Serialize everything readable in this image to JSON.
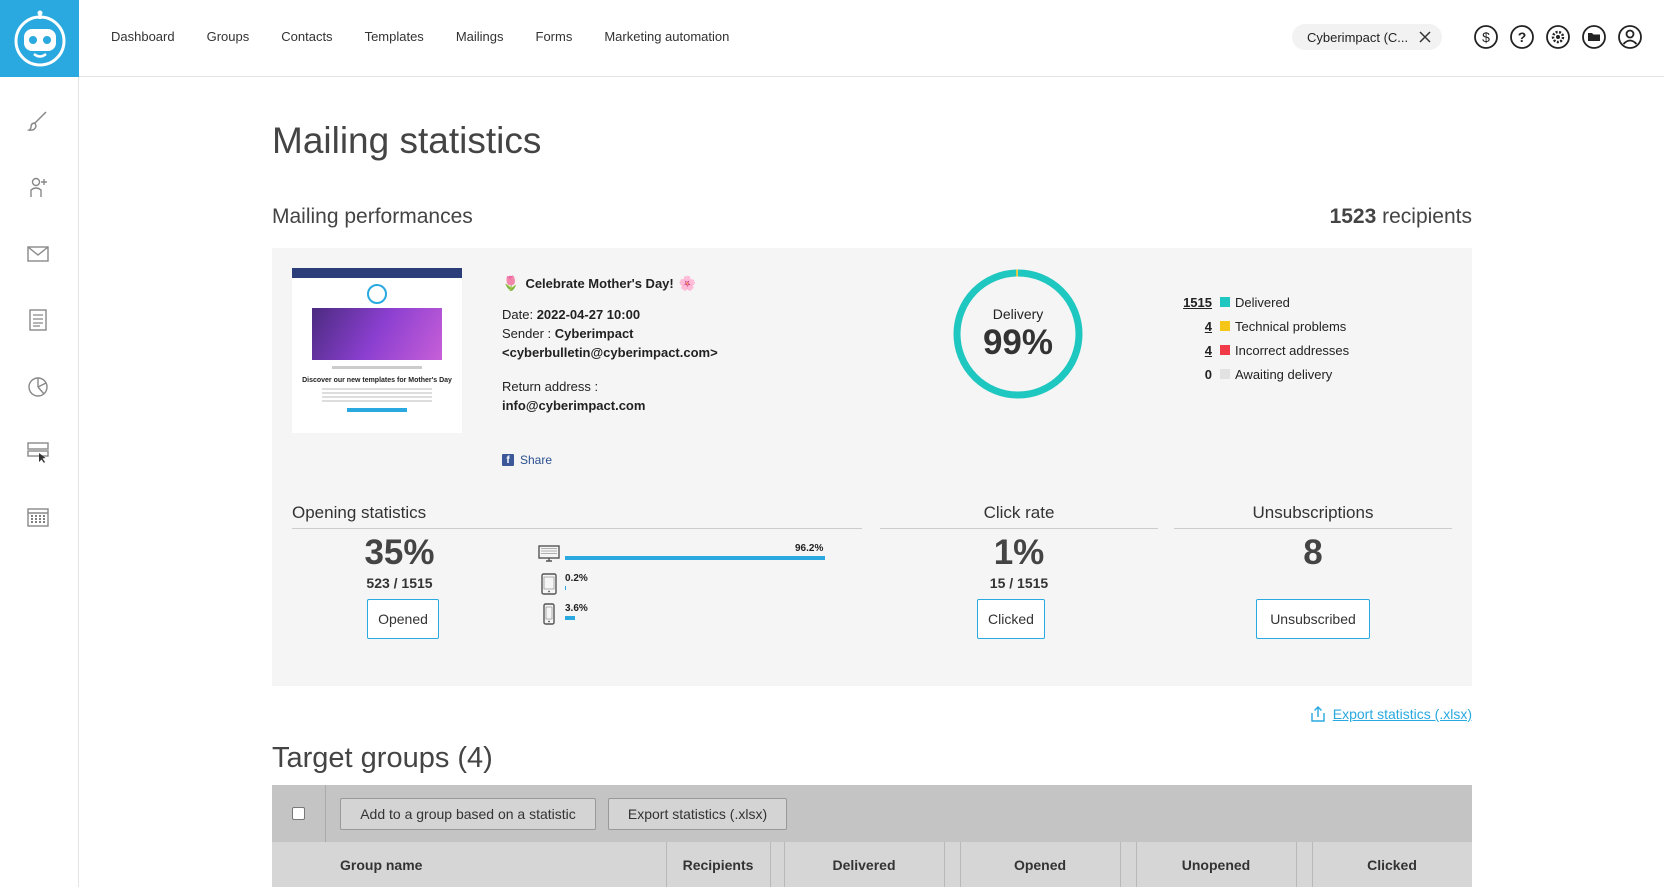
{
  "nav": {
    "items": [
      "Dashboard",
      "Groups",
      "Contacts",
      "Templates",
      "Mailings",
      "Forms",
      "Marketing automation"
    ],
    "account": "Cyberimpact (C...",
    "icons": [
      "dollar-icon",
      "help-icon",
      "settings-icon",
      "folder-icon",
      "user-icon"
    ]
  },
  "sidebar": {
    "icons": [
      "brush-icon",
      "add-contact-icon",
      "mail-icon",
      "document-icon",
      "pie-chart-icon",
      "form-icon",
      "calendar-icon"
    ]
  },
  "page": {
    "title": "Mailing statistics",
    "performance_title": "Mailing performances",
    "recipients_count": "1523",
    "recipients_label": " recipients"
  },
  "mailing": {
    "subject": "Celebrate Mother's Day!",
    "thumbnail_heading": "Discover our new templates for Mother's Day",
    "date_label": "Date: ",
    "date_value": "2022-04-27 10:00",
    "sender_label": "Sender : ",
    "sender_name": "Cyberimpact",
    "sender_email": "<cyberbulletin@cyberimpact.com>",
    "return_label": "Return address :",
    "return_value": "info@cyberimpact.com",
    "share_label": "Share"
  },
  "delivery": {
    "label": "Delivery",
    "value": "99%",
    "delivered_fraction": 0.995,
    "colors": {
      "delivered": "#1ec8c0",
      "technical": "#f5c518",
      "incorrect": "#f03a47",
      "awaiting": "#e2e2e2"
    },
    "legend": [
      {
        "count": "1515",
        "label": "Delivered",
        "underline": true
      },
      {
        "count": "4",
        "label": "Technical problems",
        "underline": true
      },
      {
        "count": "4",
        "label": "Incorrect addresses",
        "underline": true
      },
      {
        "count": "0",
        "label": "Awaiting delivery",
        "underline": false
      }
    ]
  },
  "opening": {
    "title": "Opening statistics",
    "pct": "35%",
    "ratio": "523 / 1515",
    "button": "Opened",
    "devices": [
      {
        "icon": "desktop-icon",
        "value": "96.2%",
        "fraction": 0.962
      },
      {
        "icon": "tablet-icon",
        "value": "0.2%",
        "fraction": 0.002
      },
      {
        "icon": "mobile-icon",
        "value": "3.6%",
        "fraction": 0.036
      }
    ]
  },
  "click": {
    "title": "Click rate",
    "pct": "1%",
    "ratio": "15 / 1515",
    "button": "Clicked"
  },
  "unsub": {
    "title": "Unsubscriptions",
    "value": "8",
    "button": "Unsubscribed"
  },
  "export_label": "Export statistics (.xlsx)",
  "groups": {
    "title": "Target groups (4)",
    "toolbar": {
      "add_label": "Add to a group based on a statistic",
      "export_label": "Export statistics (.xlsx)"
    },
    "columns": [
      "Group name",
      "Recipients",
      "Delivered",
      "Opened",
      "Unopened",
      "Clicked"
    ]
  }
}
